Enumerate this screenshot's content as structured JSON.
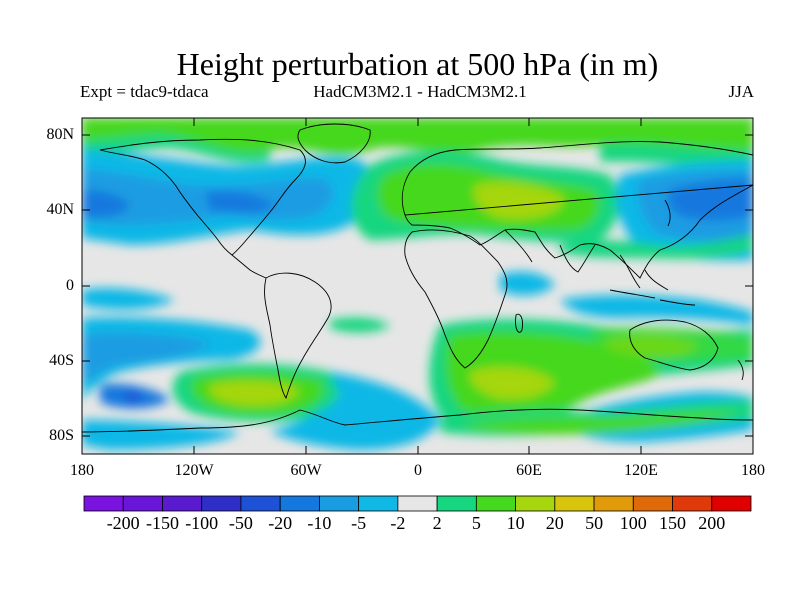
{
  "title": "Height perturbation at 500 hPa (in m)",
  "subtitle_left": "Expt = tdac9-tdaca",
  "subtitle_center": "HadCM3M2.1 - HadCM3M2.1",
  "subtitle_right": "JJA",
  "y_axis_labels": [
    "80N",
    "40N",
    "0",
    "40S",
    "80S"
  ],
  "x_axis_labels": [
    "180",
    "120W",
    "60W",
    "0",
    "60E",
    "120E",
    "180"
  ],
  "colorbar": {
    "colors": [
      "#7a12e0",
      "#6a16d8",
      "#5a1ad0",
      "#2e2ec8",
      "#1e52d6",
      "#1478de",
      "#1a9ce2",
      "#10b8e6",
      "#e6e6e6",
      "#16d680",
      "#44d81e",
      "#a6d60e",
      "#d8c40a",
      "#e09a0a",
      "#e06a0a",
      "#e03a0a",
      "#e00000"
    ],
    "labels": [
      "-200",
      "-150",
      "-100",
      "-50",
      "-20",
      "-10",
      "-5",
      "-2",
      "2",
      "5",
      "10",
      "20",
      "50",
      "100",
      "150",
      "200"
    ]
  },
  "chart_data": {
    "type": "contour-map",
    "variable": "Height perturbation at 500 hPa",
    "units": "m",
    "season": "JJA",
    "experiment": "tdac9-tdaca",
    "model": "HadCM3M2.1 - HadCM3M2.1",
    "lon_range": [
      -180,
      180
    ],
    "lat_range": [
      -90,
      90
    ],
    "levels": [
      -200,
      -150,
      -100,
      -50,
      -20,
      -10,
      -5,
      -2,
      2,
      5,
      10,
      20,
      50,
      100,
      150,
      200
    ],
    "features": [
      {
        "region": "North Pacific / North America",
        "sign": "negative",
        "approx_value": -10
      },
      {
        "region": "North Atlantic to Europe",
        "sign": "positive",
        "approx_value": 10
      },
      {
        "region": "Mediterranean / Central Asia",
        "sign": "positive",
        "approx_value": 20
      },
      {
        "region": "Arctic",
        "sign": "positive",
        "approx_value": 5
      },
      {
        "region": "East Asia / NW Pacific",
        "sign": "negative",
        "approx_value": -10
      },
      {
        "region": "South Pacific 60S",
        "sign": "positive",
        "approx_value": 20
      },
      {
        "region": "South Indian Ocean 50S",
        "sign": "positive",
        "approx_value": 20
      },
      {
        "region": "Southern Ocean 70S",
        "sign": "negative",
        "approx_value": -10
      },
      {
        "region": "Australia 30S",
        "sign": "positive",
        "approx_value": 20
      }
    ]
  }
}
